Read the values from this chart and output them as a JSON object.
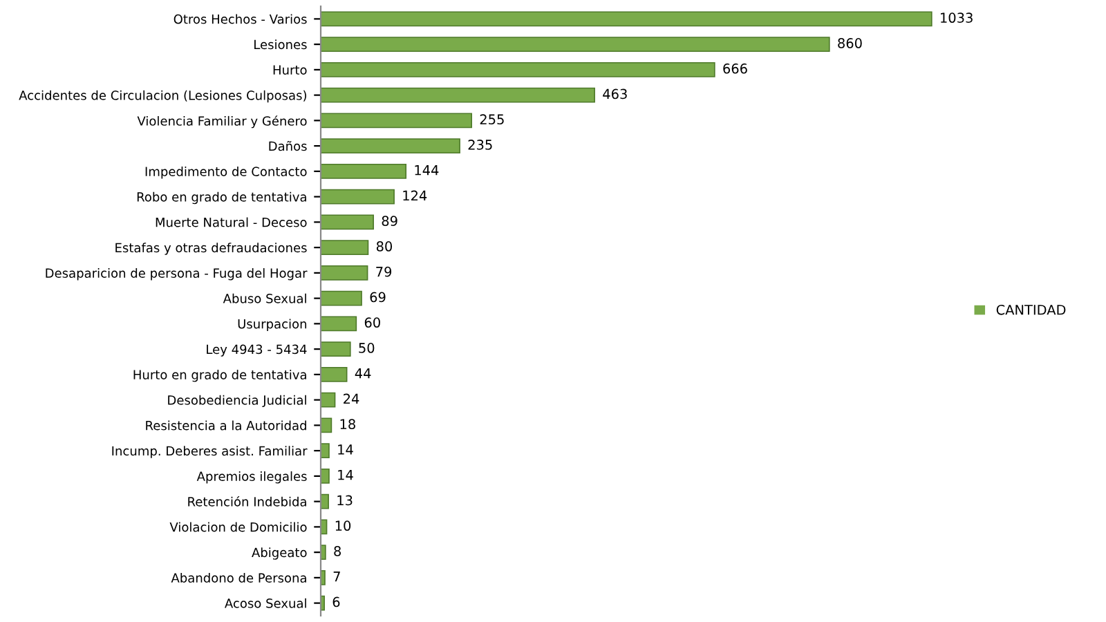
{
  "chart_data": {
    "type": "bar",
    "orientation": "horizontal",
    "data_labels": true,
    "legend": "right",
    "grid": false,
    "categories": [
      "Otros Hechos - Varios",
      "Lesiones",
      "Hurto",
      "Accidentes de Circulacion (Lesiones Culposas)",
      "Violencia Familiar y Género",
      "Daños",
      "Impedimento de Contacto",
      "Robo en grado de tentativa",
      "Muerte Natural - Deceso",
      "Estafas y otras defraudaciones",
      "Desaparicion de persona - Fuga del Hogar",
      "Abuso Sexual",
      "Usurpacion",
      "Ley 4943 - 5434",
      "Hurto en grado de tentativa",
      "Desobediencia Judicial",
      "Resistencia a la Autoridad",
      "Incump. Deberes asist. Familiar",
      "Apremios ilegales",
      "Retención Indebida",
      "Violacion de Domicilio",
      "Abigeato",
      "Abandono de Persona",
      "Acoso Sexual"
    ],
    "series": [
      {
        "name": "CANTIDAD",
        "color": "#7aab4a",
        "values": [
          1033,
          860,
          666,
          463,
          255,
          235,
          144,
          124,
          89,
          80,
          79,
          69,
          60,
          50,
          44,
          24,
          18,
          14,
          14,
          13,
          10,
          8,
          7,
          6
        ]
      }
    ]
  }
}
